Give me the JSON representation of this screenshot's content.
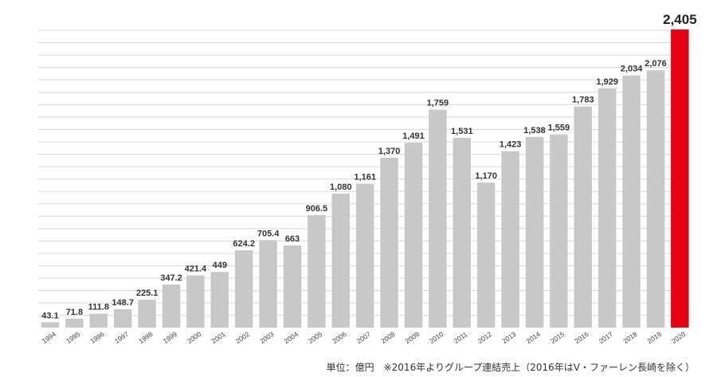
{
  "chart_data": {
    "type": "bar",
    "categories": [
      "1994",
      "1995",
      "1996",
      "1997",
      "1998",
      "1999",
      "2000",
      "2001",
      "2002",
      "2003",
      "2004",
      "2005",
      "2006",
      "2007",
      "2008",
      "2009",
      "2010",
      "2011",
      "2012",
      "2013",
      "2014",
      "2015",
      "2016",
      "2017",
      "2018",
      "2019",
      "2020"
    ],
    "values": [
      43.1,
      71.8,
      111.8,
      148.7,
      225.1,
      347.2,
      421.4,
      449,
      624.2,
      705.4,
      663,
      906.5,
      1080,
      1161,
      1370,
      1491,
      1759,
      1531,
      1170,
      1423,
      1538,
      1559,
      1783,
      1929,
      2034,
      2076,
      2405
    ],
    "value_labels": [
      "43.1",
      "71.8",
      "111.8",
      "148.7",
      "225.1",
      "347.2",
      "421.4",
      "449",
      "624.2",
      "705.4",
      "663",
      "906.5",
      "1,080",
      "1,161",
      "1,370",
      "1,491",
      "1,759",
      "1,531",
      "1,170",
      "1,423",
      "1,538",
      "1,559",
      "1,783",
      "1,929",
      "2,034",
      "2,076",
      "2,405"
    ],
    "highlight_category": "2020",
    "ylim": [
      0,
      2405
    ],
    "grid": true,
    "colors": {
      "bar": "#c8c8c8",
      "highlight": "#e60012",
      "grid": "#d9d9d9"
    }
  },
  "footnote": "単位：億円　※2016年よりグループ連結売上（2016年はV・ファーレン長崎を除く）"
}
